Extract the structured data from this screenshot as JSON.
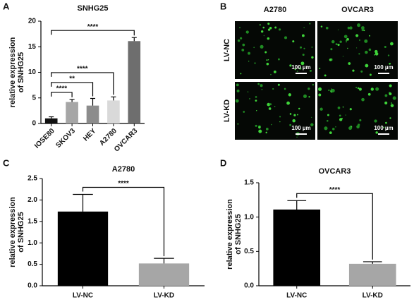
{
  "chart_data": [
    {
      "type": "bar",
      "panel": "A",
      "title": "SNHG25",
      "ylabel": [
        "relative expression",
        "of SNHG25"
      ],
      "categories": [
        "IOSE80",
        "SKOV3",
        "HEY",
        "A2780",
        "OVCAR3"
      ],
      "values": [
        1.0,
        4.2,
        3.5,
        4.5,
        16.1
      ],
      "errors": [
        0.3,
        0.5,
        1.4,
        0.7,
        0.7
      ],
      "colors": [
        "#111111",
        "#a6a6a6",
        "#8c8c8c",
        "#d9d9d9",
        "#6e6e6e"
      ],
      "ylim": [
        0,
        20
      ],
      "yticks": [
        0,
        5,
        10,
        15,
        20
      ],
      "comparisons": [
        {
          "pair": [
            "IOSE80",
            "SKOV3"
          ],
          "label": "****"
        },
        {
          "pair": [
            "IOSE80",
            "HEY"
          ],
          "label": "**"
        },
        {
          "pair": [
            "IOSE80",
            "A2780"
          ],
          "label": "****"
        },
        {
          "pair": [
            "IOSE80",
            "OVCAR3"
          ],
          "label": "****"
        }
      ]
    },
    {
      "type": "bar",
      "panel": "C",
      "title": "A2780",
      "ylabel": [
        "relative expression",
        "of SNHG25"
      ],
      "categories": [
        "LV-NC",
        "LV-KD"
      ],
      "values": [
        1.73,
        0.52
      ],
      "errors": [
        0.4,
        0.12
      ],
      "colors": [
        "#000000",
        "#a6a6a6"
      ],
      "ylim": [
        0,
        2.5
      ],
      "yticks": [
        {
          "value": 0,
          "label": "0.0"
        },
        0.5,
        {
          "value": 1,
          "label": "1.0"
        },
        1.5,
        {
          "value": 2,
          "label": "2.0"
        },
        2.5
      ],
      "comparisons": [
        {
          "pair": [
            "LV-NC",
            "LV-KD"
          ],
          "label": "****"
        }
      ]
    },
    {
      "type": "bar",
      "panel": "D",
      "title": "OVCAR3",
      "ylabel": [
        "relative expression",
        "of SNHG25"
      ],
      "categories": [
        "LV-NC",
        "LV-KD"
      ],
      "values": [
        1.11,
        0.32
      ],
      "errors": [
        0.13,
        0.03
      ],
      "colors": [
        "#000000",
        "#a6a6a6"
      ],
      "ylim": [
        0,
        1.5
      ],
      "yticks": [
        {
          "value": 0,
          "label": "0.0"
        },
        0.5,
        {
          "value": 1,
          "label": "1.0"
        },
        1.5
      ],
      "comparisons": [
        {
          "pair": [
            "LV-NC",
            "LV-KD"
          ],
          "label": "****"
        }
      ]
    }
  ],
  "panel_b": {
    "panel": "B",
    "columns": [
      "A2780",
      "OVCAR3"
    ],
    "rows": [
      "LV-NC",
      "LV-KD"
    ],
    "scale_bar": "100 µm"
  }
}
